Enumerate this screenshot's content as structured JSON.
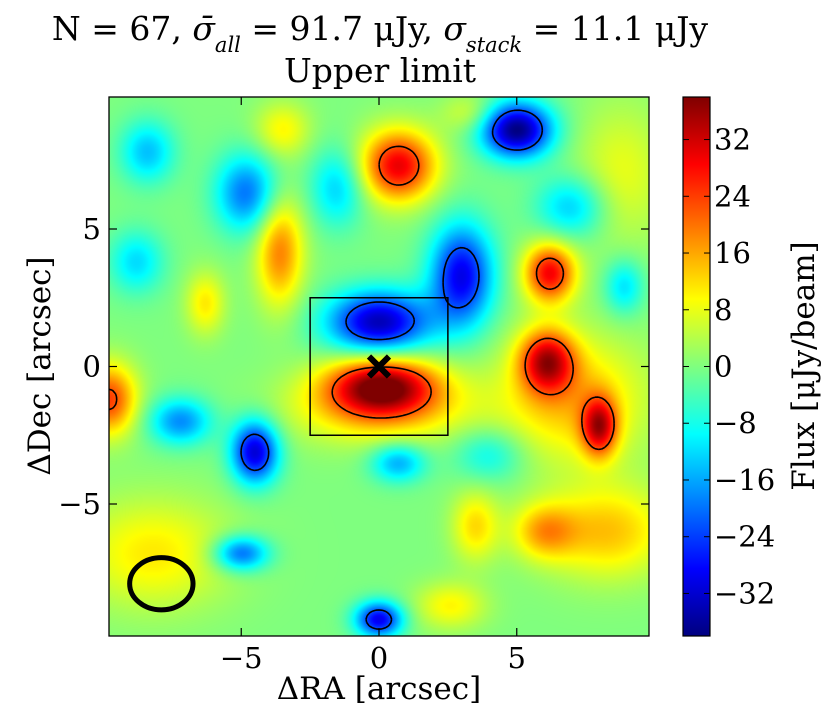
{
  "chart_data": {
    "type": "heatmap",
    "title_line1_prefix": "N = 67, ",
    "title_sigma_all_label": "all",
    "title_sigma_all_value": " = 91.7 μJy, ",
    "title_sigma_stack_label": "stack",
    "title_sigma_stack_value": " = 11.1 μJy",
    "title_line2": "Upper limit",
    "xlabel": "ΔRA [arcsec]",
    "ylabel": "ΔDec [arcsec]",
    "colorbar_label": "Flux [μJy/beam]",
    "xlim": [
      -9.8,
      9.8
    ],
    "ylim": [
      -9.8,
      9.8
    ],
    "x_ticks": [
      -5,
      0,
      5
    ],
    "x_tick_labels": [
      "−5",
      "0",
      "5"
    ],
    "y_ticks": [
      -5,
      0,
      5
    ],
    "y_tick_labels": [
      "−5",
      "0",
      "5"
    ],
    "colorbar_range": [
      -38,
      38
    ],
    "colorbar_ticks": [
      32,
      24,
      16,
      8,
      0,
      -8,
      -16,
      -24,
      -32
    ],
    "colorbar_tick_labels": [
      "32",
      "24",
      "16",
      "8",
      "0",
      "−8",
      "−16",
      "−24",
      "−32"
    ],
    "colormap": "jet",
    "colormap_stops": [
      "#00007f",
      "#0000ff",
      "#007fff",
      "#00ffff",
      "#7fff7f",
      "#ffff00",
      "#ff7f00",
      "#ff0000",
      "#7f0000"
    ],
    "blobs": [
      {
        "x": 0.1,
        "y": -0.7,
        "amp": 36,
        "sx": 1.4,
        "sy": 0.75
      },
      {
        "x": 0.0,
        "y": -1.6,
        "amp": 12,
        "sx": 2.4,
        "sy": 0.9
      },
      {
        "x": 0.7,
        "y": 7.3,
        "amp": 30,
        "sx": 0.95,
        "sy": 0.9
      },
      {
        "x": 6.2,
        "y": 3.4,
        "amp": 29,
        "sx": 0.65,
        "sy": 0.75
      },
      {
        "x": 6.1,
        "y": 0.2,
        "amp": 29,
        "sx": 0.7,
        "sy": 0.8
      },
      {
        "x": 8.0,
        "y": -2.2,
        "amp": 27,
        "sx": 0.45,
        "sy": 0.75
      },
      {
        "x": 7.0,
        "y": -1.2,
        "amp": 14,
        "sx": 1.9,
        "sy": 1.6
      },
      {
        "x": 8.3,
        "y": -6.0,
        "amp": 14,
        "sx": 1.6,
        "sy": 1.2
      },
      {
        "x": 6.0,
        "y": -6.0,
        "amp": 14,
        "sx": 0.8,
        "sy": 0.7
      },
      {
        "x": 3.5,
        "y": -5.8,
        "amp": 12,
        "sx": 0.6,
        "sy": 0.9
      },
      {
        "x": -3.6,
        "y": 4.2,
        "amp": 19,
        "sx": 0.6,
        "sy": 1.4
      },
      {
        "x": -6.3,
        "y": 2.3,
        "amp": 11,
        "sx": 0.5,
        "sy": 0.8
      },
      {
        "x": -8.2,
        "y": -6.8,
        "amp": 11,
        "sx": 2.0,
        "sy": 1.4
      },
      {
        "x": -9.8,
        "y": -1.2,
        "amp": 24,
        "sx": 0.7,
        "sy": 0.9
      },
      {
        "x": 2.6,
        "y": -8.7,
        "amp": 10,
        "sx": 0.9,
        "sy": 0.6
      },
      {
        "x": -3.5,
        "y": 8.6,
        "amp": 10,
        "sx": 0.7,
        "sy": 0.7
      },
      {
        "x": 8.8,
        "y": 7.0,
        "amp": 8,
        "sx": 1.2,
        "sy": 1.8
      },
      {
        "x": 3.3,
        "y": 9.2,
        "amp": 7,
        "sx": 0.7,
        "sy": 0.5
      },
      {
        "x": 5.0,
        "y": 8.6,
        "amp": -38,
        "sx": 0.9,
        "sy": 0.7
      },
      {
        "x": 0.0,
        "y": 1.6,
        "amp": -34,
        "sx": 1.3,
        "sy": 0.8
      },
      {
        "x": 3.0,
        "y": 3.3,
        "amp": -30,
        "sx": 0.8,
        "sy": 1.3
      },
      {
        "x": -4.5,
        "y": -3.1,
        "amp": -32,
        "sx": 0.6,
        "sy": 0.8
      },
      {
        "x": 0.0,
        "y": -9.2,
        "amp": -30,
        "sx": 0.6,
        "sy": 0.45
      },
      {
        "x": -7.2,
        "y": -2.0,
        "amp": -18,
        "sx": 0.8,
        "sy": 0.6
      },
      {
        "x": -4.8,
        "y": 6.3,
        "amp": -20,
        "sx": 0.8,
        "sy": 1.0
      },
      {
        "x": -8.4,
        "y": 7.8,
        "amp": -14,
        "sx": 0.7,
        "sy": 0.8
      },
      {
        "x": -8.8,
        "y": 3.8,
        "amp": -12,
        "sx": 0.7,
        "sy": 0.8
      },
      {
        "x": -5.0,
        "y": -6.8,
        "amp": -22,
        "sx": 0.7,
        "sy": 0.45
      },
      {
        "x": 0.7,
        "y": -3.5,
        "amp": -16,
        "sx": 0.7,
        "sy": 0.5
      },
      {
        "x": 7.0,
        "y": 5.8,
        "amp": -14,
        "sx": 0.9,
        "sy": 0.8
      },
      {
        "x": 8.9,
        "y": 2.9,
        "amp": -12,
        "sx": 0.5,
        "sy": 0.7
      },
      {
        "x": -1.5,
        "y": 6.5,
        "amp": -13,
        "sx": 0.7,
        "sy": 1.0
      },
      {
        "x": 4.0,
        "y": -3.2,
        "amp": -10,
        "sx": 0.9,
        "sy": 0.7
      }
    ],
    "contour_level": 22,
    "box": {
      "x": [
        -2.5,
        2.5
      ],
      "y": [
        -2.5,
        2.5
      ]
    },
    "center_marker": {
      "x": 0,
      "y": 0,
      "symbol": "x"
    },
    "beam": {
      "x": -7.9,
      "y": -7.9,
      "rx": 1.15,
      "ry": 0.95
    }
  }
}
